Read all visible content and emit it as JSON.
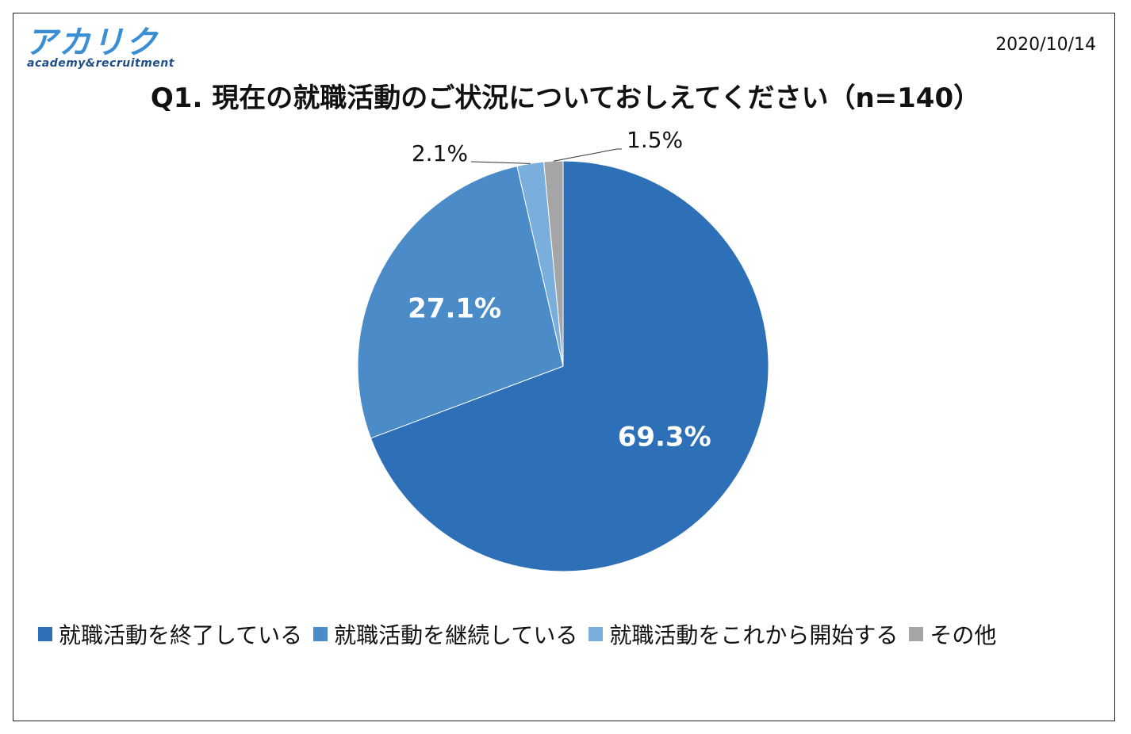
{
  "header": {
    "logo_main": "アカリク",
    "logo_sub": "academy&recruitment",
    "date": "2020/10/14"
  },
  "chart_data": {
    "type": "pie",
    "title": "Q1. 現在の就職活動のご状況についておしえてください（n=140）",
    "slices": [
      {
        "label": "就職活動を終了している",
        "value": 69.3,
        "display": "69.3%",
        "color": "#2e70b8",
        "label_position": "inside"
      },
      {
        "label": "就職活動を継続している",
        "value": 27.1,
        "display": "27.1%",
        "color": "#4a8bc8",
        "label_position": "inside"
      },
      {
        "label": "就職活動をこれから開始する",
        "value": 2.1,
        "display": "2.1%",
        "color": "#7aaedc",
        "label_position": "outside-left"
      },
      {
        "label": "その他",
        "value": 1.5,
        "display": "1.5%",
        "color": "#a5a5a5",
        "label_position": "outside-right"
      }
    ],
    "start_angle": "12 o'clock",
    "direction": "clockwise",
    "legend_position": "bottom"
  }
}
